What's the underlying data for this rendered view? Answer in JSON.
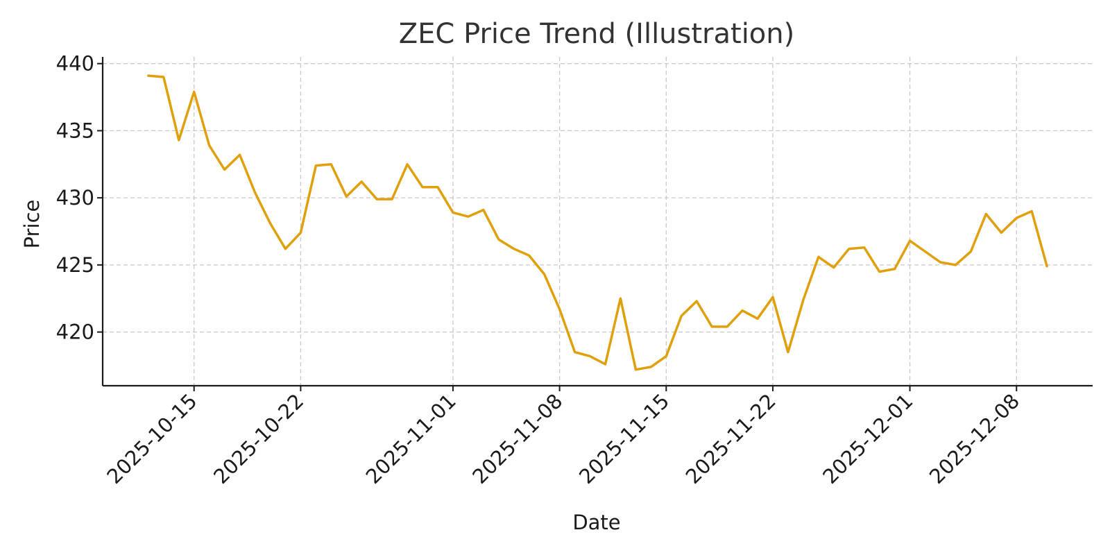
{
  "chart_data": {
    "type": "line",
    "title": "ZEC Price Trend (Illustration)",
    "xlabel": "Date",
    "ylabel": "Price",
    "x_start": "2025-10-12",
    "x_end": "2025-12-10",
    "ylim": [
      416,
      440.5
    ],
    "yticks": [
      420,
      425,
      430,
      435,
      440
    ],
    "xticks": [
      "2025-10-15",
      "2025-10-22",
      "2025-11-01",
      "2025-11-08",
      "2025-11-15",
      "2025-11-22",
      "2025-12-01",
      "2025-12-08"
    ],
    "grid": true,
    "legend": "none",
    "series": [
      {
        "color": "#e0a00c",
        "x": [
          "2025-10-12",
          "2025-10-13",
          "2025-10-14",
          "2025-10-15",
          "2025-10-16",
          "2025-10-17",
          "2025-10-18",
          "2025-10-19",
          "2025-10-20",
          "2025-10-21",
          "2025-10-22",
          "2025-10-23",
          "2025-10-24",
          "2025-10-25",
          "2025-10-26",
          "2025-10-27",
          "2025-10-28",
          "2025-10-29",
          "2025-10-30",
          "2025-10-31",
          "2025-11-01",
          "2025-11-02",
          "2025-11-03",
          "2025-11-04",
          "2025-11-05",
          "2025-11-06",
          "2025-11-07",
          "2025-11-08",
          "2025-11-09",
          "2025-11-10",
          "2025-11-11",
          "2025-11-12",
          "2025-11-13",
          "2025-11-14",
          "2025-11-15",
          "2025-11-16",
          "2025-11-17",
          "2025-11-18",
          "2025-11-19",
          "2025-11-20",
          "2025-11-21",
          "2025-11-22",
          "2025-11-23",
          "2025-11-24",
          "2025-11-25",
          "2025-11-26",
          "2025-11-27",
          "2025-11-28",
          "2025-11-29",
          "2025-11-30",
          "2025-12-01",
          "2025-12-02",
          "2025-12-03",
          "2025-12-04",
          "2025-12-05",
          "2025-12-06",
          "2025-12-07",
          "2025-12-08",
          "2025-12-09",
          "2025-12-10"
        ],
        "values": [
          439.1,
          439.0,
          434.3,
          437.9,
          433.9,
          432.1,
          433.2,
          430.4,
          428.1,
          426.2,
          427.4,
          432.4,
          432.5,
          430.1,
          431.2,
          429.9,
          429.9,
          432.5,
          430.8,
          430.8,
          428.9,
          428.6,
          429.1,
          426.9,
          426.2,
          425.7,
          424.3,
          421.7,
          418.5,
          418.2,
          417.6,
          422.5,
          417.2,
          417.4,
          418.2,
          421.2,
          422.3,
          420.4,
          420.4,
          421.6,
          421.0,
          422.6,
          418.5,
          422.4,
          425.6,
          424.8,
          426.2,
          426.3,
          424.5,
          424.7,
          426.8,
          426.0,
          425.2,
          425.0,
          426.0,
          428.8,
          427.4,
          428.5,
          429.0,
          424.9
        ]
      }
    ]
  }
}
